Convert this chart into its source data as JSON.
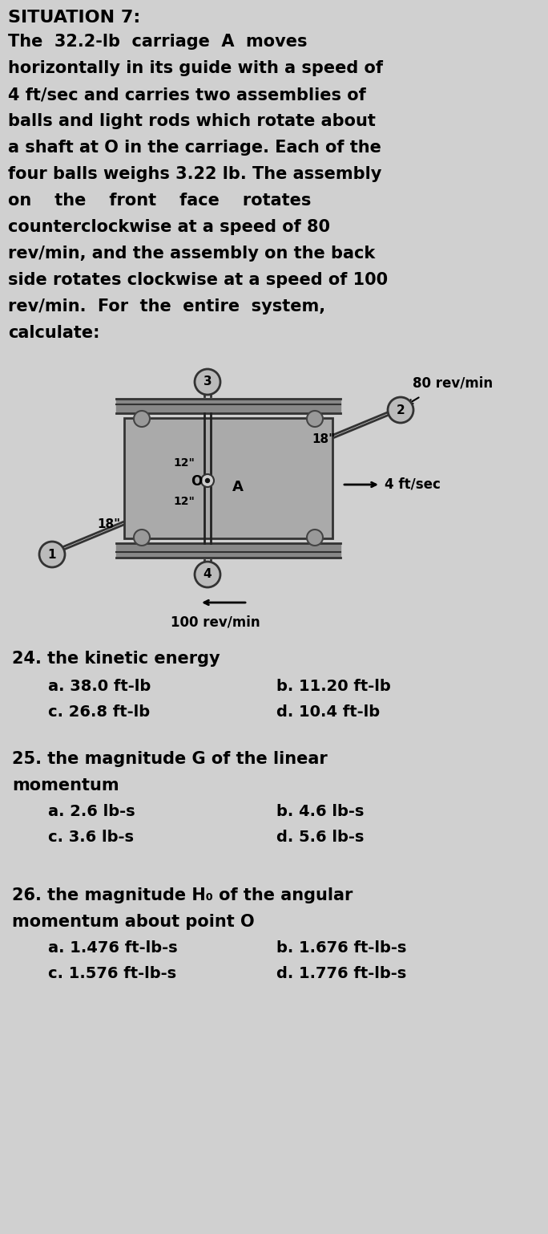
{
  "title": "SITUATION 7:",
  "bg_color": "#d0d0d0",
  "text_color": "#000000",
  "para_lines": [
    "The  32.2-lb  carriage  A  moves",
    "horizontally in its guide with a speed of",
    "4 ft/sec and carries two assemblies of",
    "balls and light rods which rotate about",
    "a shaft at O in the carriage. Each of the",
    "four balls weighs 3.22 lb. The assembly",
    "on    the    front    face    rotates",
    "counterclockwise at a speed of 80",
    "rev/min, and the assembly on the back",
    "side rotates clockwise at a speed of 100",
    "rev/min.  For  the  entire  system,",
    "calculate:"
  ],
  "q24_label": "24. the kinetic energy",
  "q24_a": "a. 38.0 ft-lb",
  "q24_b": "b. 11.20 ft-lb",
  "q24_c": "c. 26.8 ft-lb",
  "q24_d": "d. 10.4 ft-lb",
  "q25_line1": "25. the magnitude G of the linear",
  "q25_line2": "momentum",
  "q25_a": "a. 2.6 lb-s",
  "q25_b": "b. 4.6 lb-s",
  "q25_c": "c. 3.6 lb-s",
  "q25_d": "d. 5.6 lb-s",
  "q26_line1": "26. the magnitude H₀ of the angular",
  "q26_line2": "momentum about point O",
  "q26_a": "a. 1.476 ft-lb-s",
  "q26_b": "b. 1.676 ft-lb-s",
  "q26_c": "c. 1.576 ft-lb-s",
  "q26_d": "d. 1.776 ft-lb-s"
}
